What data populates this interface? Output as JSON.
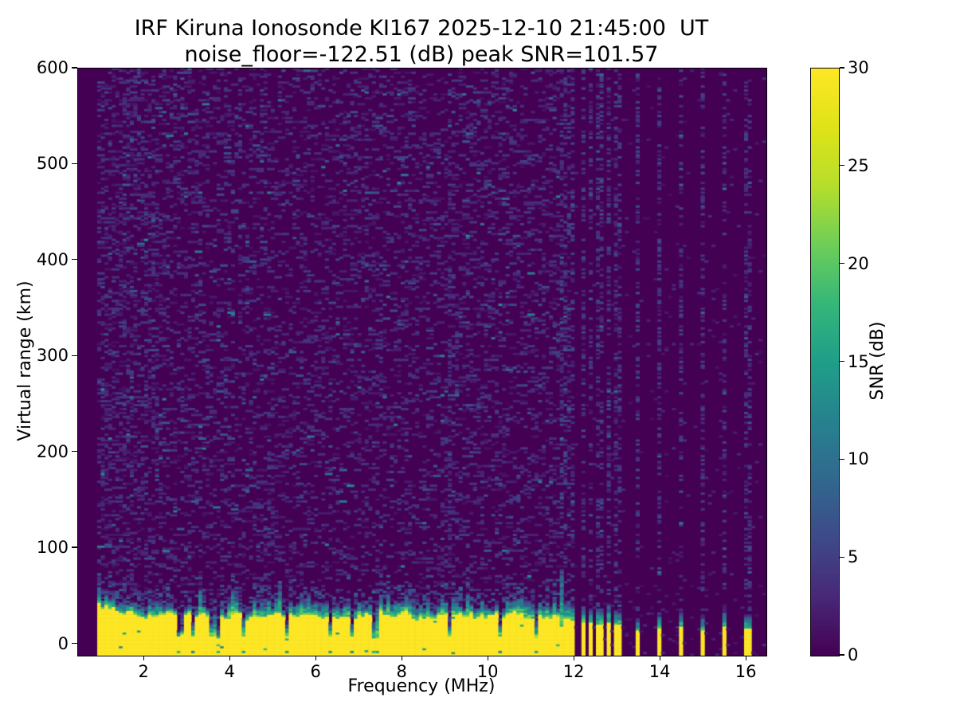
{
  "figure": {
    "title": "IRF Kiruna Ionosonde KI167 2025-12-10 21:45:00  UT",
    "subtitle": "noise_floor=-122.51 (dB) peak SNR=101.57"
  },
  "colors": {
    "background": "#ffffff",
    "axis": "#000000"
  },
  "chart_data": {
    "type": "heatmap",
    "title": "IRF Kiruna Ionosonde KI167 2025-12-10 21:45:00  UT",
    "subtitle": "noise_floor=-122.51 (dB) peak SNR=101.57",
    "station": "KI167",
    "timestamp_ut": "2025-12-10 21:45:00",
    "noise_floor_db": -122.51,
    "peak_snr_db": 101.57,
    "xlabel": "Frequency (MHz)",
    "ylabel": "Virtual range (km)",
    "colorbar_label": "SNR (dB)",
    "xlim": [
      0.46,
      16.46
    ],
    "ylim": [
      -12,
      600
    ],
    "clim": [
      0,
      30
    ],
    "xticks": [
      2,
      4,
      6,
      8,
      10,
      12,
      14,
      16
    ],
    "yticks": [
      0,
      100,
      200,
      300,
      400,
      500,
      600
    ],
    "colorbar_ticks": [
      0,
      5,
      10,
      15,
      20,
      25,
      30
    ],
    "grid": false,
    "legend": "colorbar-right",
    "colormap": "viridis",
    "colormap_stops": [
      [
        0.0,
        "#440154"
      ],
      [
        0.1,
        "#482878"
      ],
      [
        0.2,
        "#3e4a89"
      ],
      [
        0.3,
        "#31688e"
      ],
      [
        0.4,
        "#26828e"
      ],
      [
        0.5,
        "#1f9e89"
      ],
      [
        0.6,
        "#35b779"
      ],
      [
        0.7,
        "#6ece58"
      ],
      [
        0.8,
        "#b5de2b"
      ],
      [
        0.9,
        "#dfe318"
      ],
      [
        1.0,
        "#fde725"
      ]
    ],
    "sweep": {
      "f_start": 0.905,
      "f_end": 16.42,
      "f_step": 0.084,
      "range_step_km": 2.05
    },
    "ground_clutter_band": {
      "f_start": 0.905,
      "f_end": 11.63,
      "mean_top_km": 26,
      "max_top_km": 42,
      "cap_thickness_km": 12,
      "low_freq_extra_km": 12
    },
    "band_notches_mhz": [
      2.79,
      3.08,
      3.55,
      3.66,
      4.28,
      5.26,
      6.28,
      6.76,
      7.33,
      9.02,
      10.25,
      11.07
    ],
    "noise_streak_mhz": 9.05,
    "stripes": [
      {
        "f_mhz": 11.66,
        "yellow_top_km": 18,
        "cap_top_km": 78
      },
      {
        "f_mhz": 11.78,
        "yellow_top_km": 26,
        "cap_top_km": 45
      },
      {
        "f_mhz": 11.94,
        "yellow_top_km": 24,
        "cap_top_km": 42
      },
      {
        "f_mhz": 12.17,
        "yellow_top_km": 22,
        "cap_top_km": 38
      },
      {
        "f_mhz": 12.35,
        "yellow_top_km": 21,
        "cap_top_km": 36
      },
      {
        "f_mhz": 12.54,
        "yellow_top_km": 20,
        "cap_top_km": 36
      },
      {
        "f_mhz": 12.74,
        "yellow_top_km": 21,
        "cap_top_km": 40
      },
      {
        "f_mhz": 12.96,
        "yellow_top_km": 20,
        "cap_top_km": 34
      },
      {
        "f_mhz": 13.43,
        "yellow_top_km": 13,
        "cap_top_km": 26
      },
      {
        "f_mhz": 13.94,
        "yellow_top_km": 15,
        "cap_top_km": 30
      },
      {
        "f_mhz": 14.44,
        "yellow_top_km": 17,
        "cap_top_km": 33
      },
      {
        "f_mhz": 14.94,
        "yellow_top_km": 13,
        "cap_top_km": 26
      },
      {
        "f_mhz": 15.46,
        "yellow_top_km": 17,
        "cap_top_km": 34
      },
      {
        "f_mhz": 15.98,
        "yellow_top_km": 15,
        "cap_top_km": 30
      }
    ],
    "seed": 167
  }
}
